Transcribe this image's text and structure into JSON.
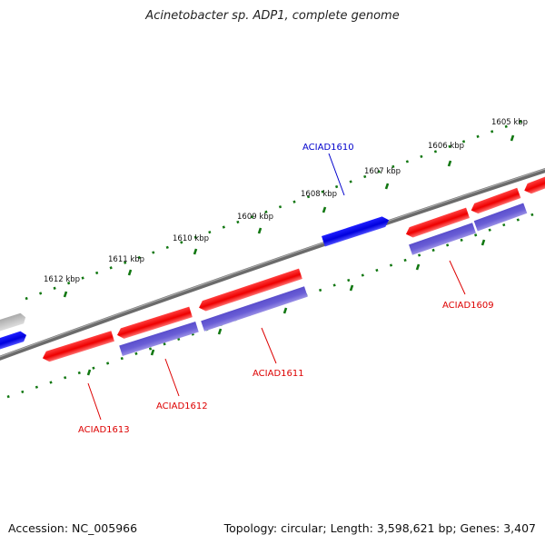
{
  "title": "Acinetobacter sp. ADP1, complete genome",
  "accession": "Accession: NC_005966",
  "topology": "Topology: circular; Length: 3,598,621 bp; Genes: 3,407",
  "colors": {
    "backbone": "#777777",
    "forward_gene": "#ff0000",
    "reverse_gene": "#0000ee",
    "orf": "#7766cc",
    "grey_gene": "#bbbbbb",
    "scale": "#117711",
    "label_red": "#dd0000",
    "label_blue": "#0000cc"
  },
  "scale_labels": [
    "1612 kbp",
    "1611 kbp",
    "1610 kbp",
    "1609 kbp",
    "1608 kbp",
    "1607 kbp",
    "1606 kbp",
    "1605 kbp"
  ],
  "gene_labels": [
    "ACIAD1610",
    "ACIAD1609",
    "ACIAD1611",
    "ACIAD1612",
    "ACIAD1613"
  ]
}
